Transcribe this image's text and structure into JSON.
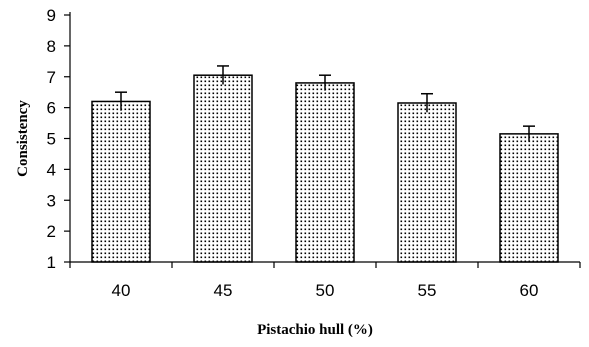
{
  "chart_data": {
    "type": "bar",
    "title": "",
    "xlabel": "Pistachio hull (%)",
    "ylabel": "Consistency",
    "categories": [
      "40",
      "45",
      "50",
      "55",
      "60"
    ],
    "values": [
      6.2,
      7.05,
      6.8,
      6.15,
      5.15
    ],
    "errors": [
      0.3,
      0.3,
      0.25,
      0.3,
      0.25
    ],
    "ylim": [
      1,
      9
    ],
    "yticks": [
      "1",
      "2",
      "3",
      "4",
      "5",
      "6",
      "7",
      "8",
      "9"
    ],
    "grid": false,
    "legend": "none",
    "bar_pattern": "dotted",
    "colors": {
      "bar_fill": "#ffffff",
      "bar_dots": "#000000",
      "stroke": "#000000"
    }
  }
}
